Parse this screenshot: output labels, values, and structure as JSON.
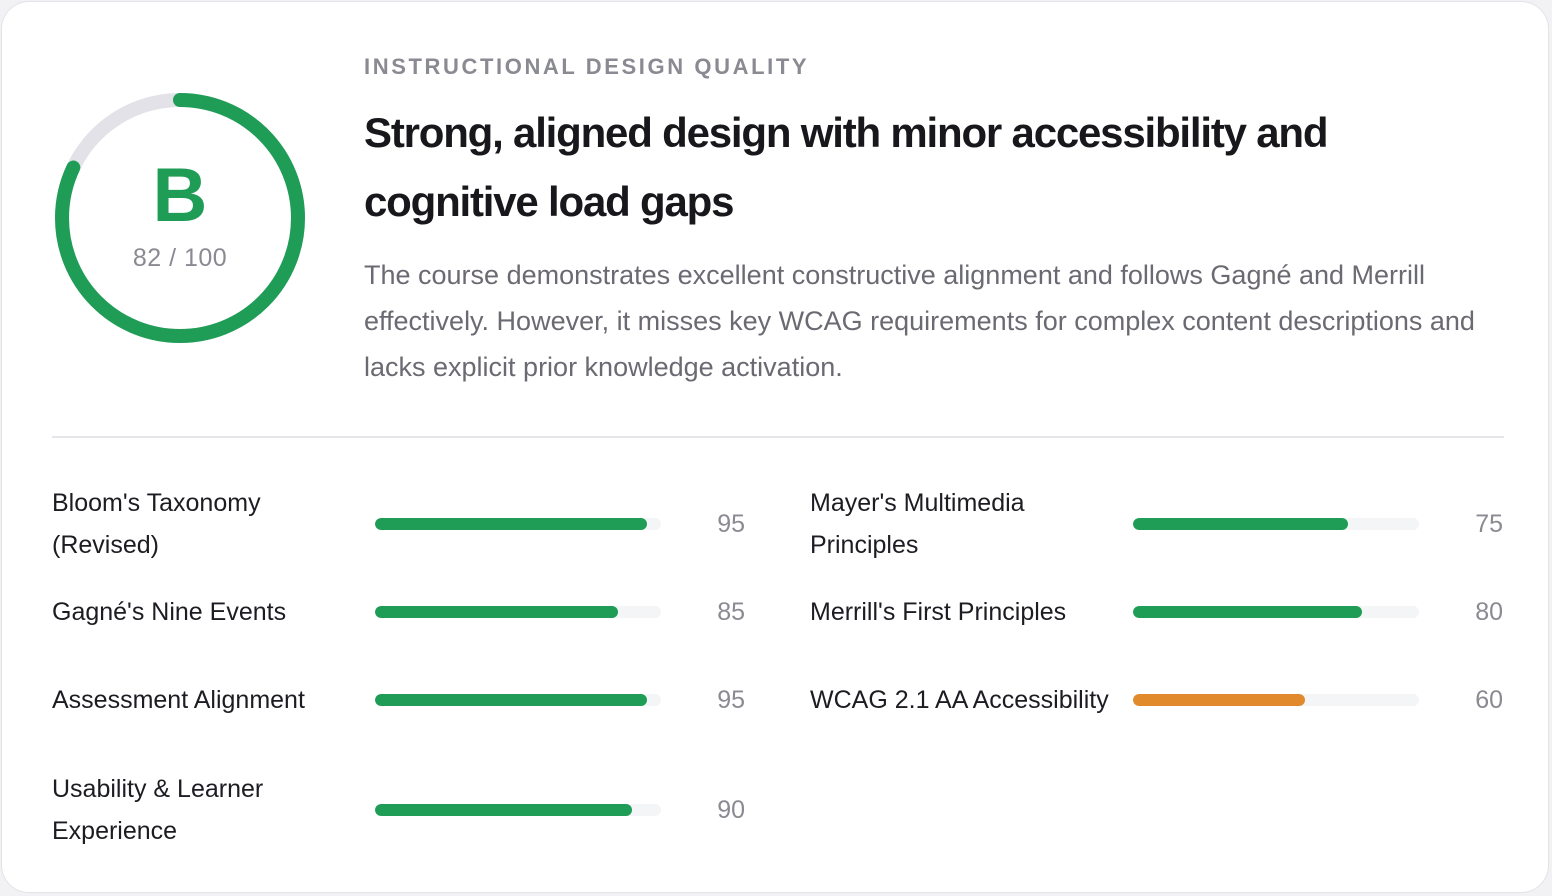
{
  "grade": {
    "letter": "B",
    "score_text": "82 / 100",
    "score": 82,
    "max": 100,
    "color": "#1f9d57",
    "track_color": "#e2e2e8"
  },
  "header": {
    "eyebrow": "INSTRUCTIONAL DESIGN QUALITY",
    "headline": "Strong, aligned design with minor accessibility and cognitive load gaps",
    "summary": "The course demonstrates excellent constructive alignment and follows Gagné and Merrill effectively. However, it misses key WCAG requirements for complex content descriptions and lacks explicit prior knowledge activation."
  },
  "metrics": [
    {
      "label": "Bloom's Taxonomy (Revised)",
      "value": "95",
      "level": 95,
      "color": "#1f9d57"
    },
    {
      "label": "Mayer's Multimedia Principles",
      "value": "75",
      "level": 75,
      "color": "#1f9d57"
    },
    {
      "label": "Gagné's Nine Events",
      "value": "85",
      "level": 85,
      "color": "#1f9d57"
    },
    {
      "label": "Merrill's First Principles",
      "value": "80",
      "level": 80,
      "color": "#1f9d57"
    },
    {
      "label": "Assessment Alignment",
      "value": "95",
      "level": 95,
      "color": "#1f9d57"
    },
    {
      "label": "WCAG 2.1 AA Accessibility",
      "value": "60",
      "level": 60,
      "color": "#e08a2c"
    },
    {
      "label": "Usability & Learner Experience",
      "value": "90",
      "level": 90,
      "color": "#1f9d57"
    }
  ]
}
